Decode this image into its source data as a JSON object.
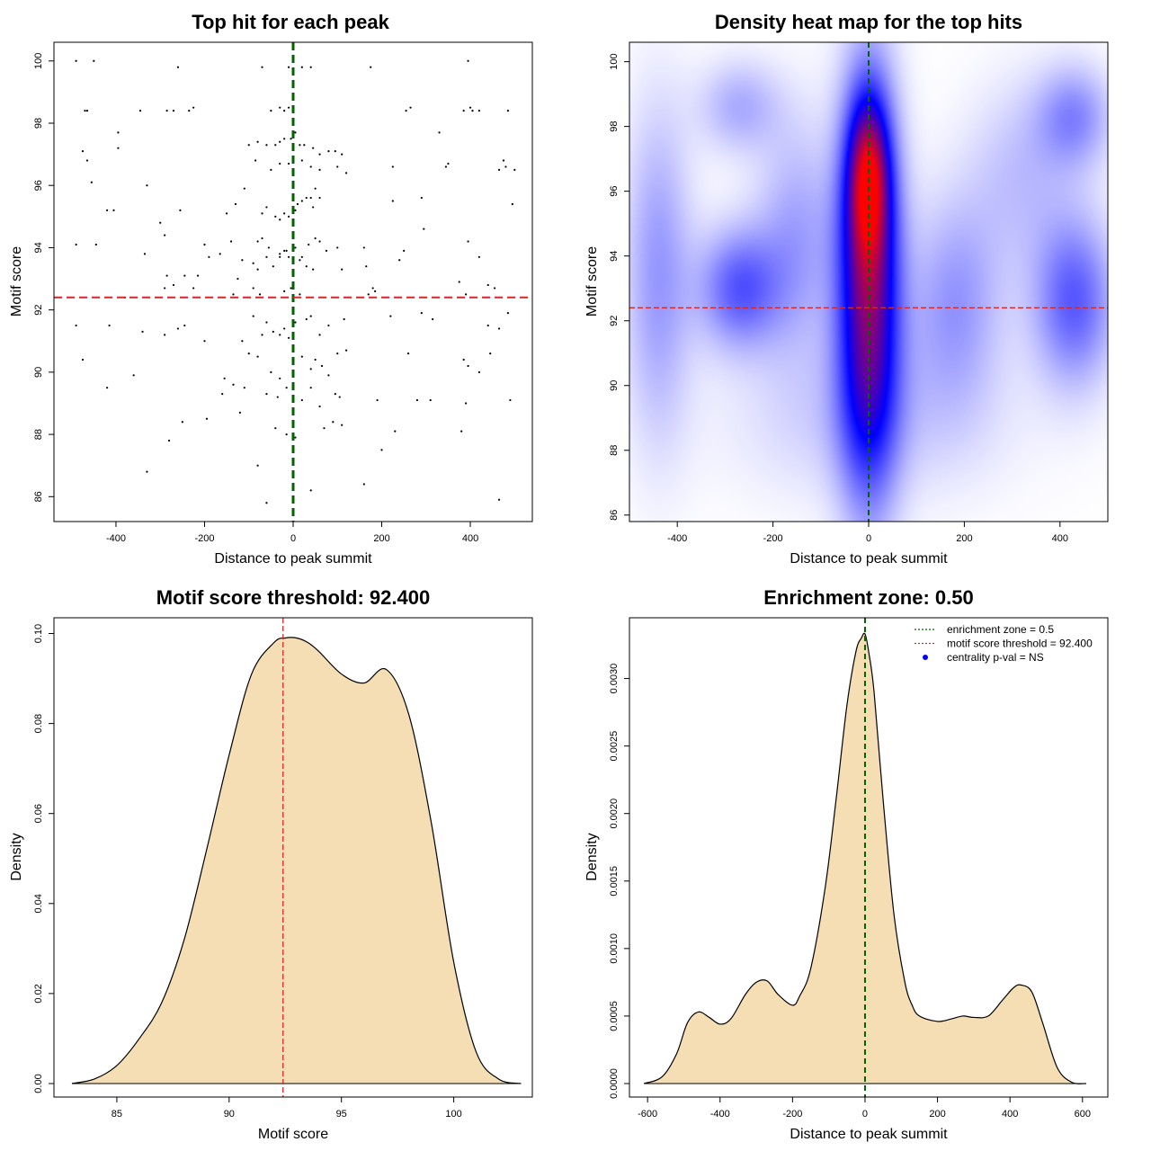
{
  "chart_data": [
    {
      "type": "scatter",
      "title": "Top hit for each peak",
      "xlabel": "Distance to peak summit",
      "ylabel": "Motif score",
      "xlim": [
        -540,
        540
      ],
      "ylim": [
        85.2,
        100.6
      ],
      "xticks": [
        -400,
        -200,
        0,
        200,
        400
      ],
      "yticks": [
        86,
        88,
        90,
        92,
        94,
        96,
        98,
        100
      ],
      "xtick_labels": [
        "-400",
        "-200",
        "0",
        "200",
        "400"
      ],
      "ytick_labels": [
        "86",
        "88",
        "90",
        "92",
        "94",
        "96",
        "98",
        "100"
      ],
      "vline": {
        "x": 0,
        "color": "#006400"
      },
      "hline": {
        "y": 92.4,
        "color": "#d62728"
      },
      "points": [
        [
          -490,
          100
        ],
        [
          -450,
          100
        ],
        [
          -260,
          99.8
        ],
        [
          -70,
          99.8
        ],
        [
          -10,
          99.8
        ],
        [
          20,
          99.8
        ],
        [
          40,
          99.8
        ],
        [
          175,
          99.8
        ],
        [
          395,
          100
        ],
        [
          -470,
          98.4
        ],
        [
          -465,
          98.4
        ],
        [
          -345,
          98.4
        ],
        [
          -285,
          98.4
        ],
        [
          -270,
          98.4
        ],
        [
          -235,
          98.4
        ],
        [
          -225,
          98.5
        ],
        [
          -50,
          98.4
        ],
        [
          -30,
          98.5
        ],
        [
          -20,
          98.4
        ],
        [
          -10,
          98.5
        ],
        [
          255,
          98.4
        ],
        [
          265,
          98.5
        ],
        [
          385,
          98.4
        ],
        [
          400,
          98.5
        ],
        [
          405,
          98.4
        ],
        [
          420,
          98.4
        ],
        [
          485,
          98.4
        ],
        [
          -395,
          97.7
        ],
        [
          -475,
          97.1
        ],
        [
          -395,
          97.2
        ],
        [
          -465,
          96.8
        ],
        [
          -100,
          97.3
        ],
        [
          -80,
          97.4
        ],
        [
          -60,
          97.3
        ],
        [
          -40,
          97.3
        ],
        [
          -30,
          97.4
        ],
        [
          -20,
          97.5
        ],
        [
          -5,
          97.5
        ],
        [
          5,
          97.7
        ],
        [
          15,
          97.3
        ],
        [
          25,
          97.3
        ],
        [
          45,
          97.2
        ],
        [
          60,
          97.0
        ],
        [
          80,
          97.1
        ],
        [
          95,
          97.1
        ],
        [
          110,
          97.0
        ],
        [
          330,
          97.7
        ],
        [
          475,
          96.8
        ],
        [
          -455,
          96.1
        ],
        [
          -330,
          96.0
        ],
        [
          -85,
          96.8
        ],
        [
          -50,
          96.5
        ],
        [
          -30,
          96.7
        ],
        [
          -10,
          96.7
        ],
        [
          20,
          96.8
        ],
        [
          40,
          96.6
        ],
        [
          60,
          96.5
        ],
        [
          100,
          96.6
        ],
        [
          120,
          96.4
        ],
        [
          225,
          96.6
        ],
        [
          345,
          96.6
        ],
        [
          350,
          96.7
        ],
        [
          480,
          96.6
        ],
        [
          500,
          96.5
        ],
        [
          465,
          96.5
        ],
        [
          -420,
          95.2
        ],
        [
          -405,
          95.2
        ],
        [
          -255,
          95.2
        ],
        [
          -150,
          95.1
        ],
        [
          -130,
          95.4
        ],
        [
          -110,
          95.9
        ],
        [
          -70,
          95.1
        ],
        [
          -60,
          95.3
        ],
        [
          -40,
          95.0
        ],
        [
          -30,
          94.9
        ],
        [
          -20,
          95.1
        ],
        [
          -10,
          95.0
        ],
        [
          5,
          95.2
        ],
        [
          10,
          95.4
        ],
        [
          20,
          95.5
        ],
        [
          30,
          95.6
        ],
        [
          40,
          95.6
        ],
        [
          45,
          95.3
        ],
        [
          50,
          95.9
        ],
        [
          60,
          95.6
        ],
        [
          225,
          95.5
        ],
        [
          290,
          95.6
        ],
        [
          495,
          95.4
        ],
        [
          -300,
          94.8
        ],
        [
          -490,
          94.1
        ],
        [
          -445,
          94.1
        ],
        [
          -290,
          94.4
        ],
        [
          -200,
          94.1
        ],
        [
          -140,
          94.2
        ],
        [
          -115,
          93.6
        ],
        [
          -80,
          94.2
        ],
        [
          -70,
          94.3
        ],
        [
          -55,
          94.0
        ],
        [
          -30,
          93.8
        ],
        [
          -15,
          93.9
        ],
        [
          5,
          94.0
        ],
        [
          20,
          93.7
        ],
        [
          35,
          94.1
        ],
        [
          50,
          94.3
        ],
        [
          60,
          94.2
        ],
        [
          75,
          93.9
        ],
        [
          100,
          94.0
        ],
        [
          160,
          94.0
        ],
        [
          250,
          93.9
        ],
        [
          295,
          94.6
        ],
        [
          395,
          94.2
        ],
        [
          -335,
          93.8
        ],
        [
          -285,
          93.1
        ],
        [
          -190,
          93.7
        ],
        [
          -165,
          93.8
        ],
        [
          -125,
          93.0
        ],
        [
          -90,
          93.5
        ],
        [
          -80,
          93.3
        ],
        [
          -60,
          93.7
        ],
        [
          -45,
          93.4
        ],
        [
          -30,
          93.7
        ],
        [
          -20,
          93.9
        ],
        [
          -10,
          93.7
        ],
        [
          15,
          93.6
        ],
        [
          30,
          93.4
        ],
        [
          45,
          93.3
        ],
        [
          110,
          93.3
        ],
        [
          165,
          93.4
        ],
        [
          240,
          93.6
        ],
        [
          420,
          93.7
        ],
        [
          375,
          92.9
        ],
        [
          -380,
          92.4
        ],
        [
          -290,
          92.7
        ],
        [
          -270,
          92.8
        ],
        [
          -245,
          93.1
        ],
        [
          -225,
          92.7
        ],
        [
          -215,
          93.1
        ],
        [
          -135,
          92.5
        ],
        [
          -90,
          92.7
        ],
        [
          -75,
          92.5
        ],
        [
          -20,
          92.6
        ],
        [
          -5,
          92.7
        ],
        [
          15,
          92.5
        ],
        [
          170,
          92.5
        ],
        [
          180,
          92.7
        ],
        [
          185,
          92.6
        ],
        [
          390,
          92.5
        ],
        [
          440,
          92.8
        ],
        [
          455,
          92.7
        ],
        [
          -490,
          91.5
        ],
        [
          -415,
          91.5
        ],
        [
          -340,
          91.3
        ],
        [
          -260,
          91.4
        ],
        [
          -245,
          91.5
        ],
        [
          -200,
          91.0
        ],
        [
          -115,
          91.0
        ],
        [
          -90,
          91.8
        ],
        [
          -70,
          91.2
        ],
        [
          -60,
          91.6
        ],
        [
          -45,
          91.3
        ],
        [
          -30,
          91.2
        ],
        [
          -20,
          91.4
        ],
        [
          -10,
          91.1
        ],
        [
          5,
          91.6
        ],
        [
          30,
          91.7
        ],
        [
          40,
          91.8
        ],
        [
          60,
          91.2
        ],
        [
          80,
          91.5
        ],
        [
          115,
          91.7
        ],
        [
          220,
          91.8
        ],
        [
          290,
          91.9
        ],
        [
          315,
          91.7
        ],
        [
          440,
          91.5
        ],
        [
          465,
          91.4
        ],
        [
          485,
          91.9
        ],
        [
          -475,
          90.4
        ],
        [
          -290,
          91.2
        ],
        [
          -100,
          90.6
        ],
        [
          -80,
          90.5
        ],
        [
          -50,
          90.0
        ],
        [
          -30,
          89.8
        ],
        [
          20,
          90.5
        ],
        [
          40,
          90.1
        ],
        [
          50,
          90.4
        ],
        [
          65,
          90.2
        ],
        [
          80,
          89.9
        ],
        [
          100,
          90.6
        ],
        [
          120,
          90.7
        ],
        [
          260,
          90.6
        ],
        [
          385,
          90.4
        ],
        [
          395,
          90.2
        ],
        [
          420,
          90.0
        ],
        [
          445,
          90.6
        ],
        [
          -420,
          89.5
        ],
        [
          -360,
          89.9
        ],
        [
          -155,
          89.8
        ],
        [
          -160,
          89.3
        ],
        [
          -135,
          89.6
        ],
        [
          -110,
          89.5
        ],
        [
          -60,
          89.3
        ],
        [
          -35,
          89.2
        ],
        [
          -15,
          89.5
        ],
        [
          20,
          89.1
        ],
        [
          40,
          89.5
        ],
        [
          60,
          88.9
        ],
        [
          95,
          89.3
        ],
        [
          105,
          89.2
        ],
        [
          190,
          89.1
        ],
        [
          280,
          89.1
        ],
        [
          310,
          89.1
        ],
        [
          390,
          89.0
        ],
        [
          490,
          89.1
        ],
        [
          -250,
          88.4
        ],
        [
          -195,
          88.5
        ],
        [
          -120,
          88.7
        ],
        [
          -40,
          88.2
        ],
        [
          -15,
          88.0
        ],
        [
          5,
          87.9
        ],
        [
          70,
          88.2
        ],
        [
          90,
          88.4
        ],
        [
          110,
          88.3
        ],
        [
          230,
          88.1
        ],
        [
          380,
          88.1
        ],
        [
          -280,
          87.8
        ],
        [
          -80,
          87.0
        ],
        [
          200,
          87.5
        ],
        [
          -330,
          86.8
        ],
        [
          40,
          86.2
        ],
        [
          160,
          86.4
        ],
        [
          -60,
          85.8
        ],
        [
          465,
          85.9
        ]
      ]
    },
    {
      "type": "heatmap",
      "title": "Density heat map for the top hits",
      "xlabel": "Distance to peak summit",
      "ylabel": "Motif score",
      "xlim": [
        -500,
        500
      ],
      "ylim": [
        85.8,
        100.6
      ],
      "xticks": [
        -400,
        -200,
        0,
        200,
        400
      ],
      "yticks": [
        86,
        88,
        90,
        92,
        94,
        96,
        98,
        100
      ],
      "xtick_labels": [
        "-400",
        "-200",
        "0",
        "200",
        "400"
      ],
      "ytick_labels": [
        "86",
        "88",
        "90",
        "92",
        "94",
        "96",
        "98",
        "100"
      ],
      "colors": [
        "#ffffff",
        "#0000ff",
        "#ff0000"
      ],
      "vline": {
        "x": 0,
        "color": "#006400"
      },
      "hline": {
        "y": 92.4,
        "color": "#d62728"
      },
      "density_blobs": [
        {
          "x": 0,
          "y": 93,
          "sx": 45,
          "sy": 4.2,
          "w": 0.75
        },
        {
          "x": 0,
          "y": 96.5,
          "sx": 30,
          "sy": 1.7,
          "w": 0.55
        },
        {
          "x": -270,
          "y": 93.0,
          "sx": 60,
          "sy": 1.3,
          "w": 0.32
        },
        {
          "x": 430,
          "y": 92.6,
          "sx": 60,
          "sy": 1.8,
          "w": 0.32
        },
        {
          "x": 430,
          "y": 98.3,
          "sx": 55,
          "sy": 1.1,
          "w": 0.22
        },
        {
          "x": -270,
          "y": 98.6,
          "sx": 60,
          "sy": 1.0,
          "w": 0.16
        },
        {
          "x": -440,
          "y": 93.5,
          "sx": 50,
          "sy": 3.5,
          "w": 0.2
        },
        {
          "x": 180,
          "y": 92.6,
          "sx": 70,
          "sy": 2.2,
          "w": 0.2
        },
        {
          "x": -150,
          "y": 94.5,
          "sx": 60,
          "sy": 2.5,
          "w": 0.18
        },
        {
          "x": 0,
          "y": 89,
          "sx": 200,
          "sy": 1.8,
          "w": 0.1
        },
        {
          "x": 320,
          "y": 96.5,
          "sx": 80,
          "sy": 2.0,
          "w": 0.12
        }
      ]
    },
    {
      "type": "area",
      "title": "Motif score threshold: 92.400",
      "xlabel": "Motif score",
      "ylabel": "Density",
      "xlim": [
        82.2,
        103.5
      ],
      "ylim": [
        -0.003,
        0.1035
      ],
      "xticks": [
        85,
        90,
        95,
        100
      ],
      "yticks": [
        0.0,
        0.02,
        0.04,
        0.06,
        0.08,
        0.1
      ],
      "xtick_labels": [
        "85",
        "90",
        "95",
        "100"
      ],
      "ytick_labels": [
        "0.00",
        "0.02",
        "0.04",
        "0.06",
        "0.08",
        "0.10"
      ],
      "fill": "#f5deb3",
      "vline": {
        "x": 92.4,
        "color": "#d62728"
      },
      "x": [
        83,
        84,
        85,
        86,
        87,
        88,
        89,
        90,
        91,
        92,
        92.5,
        93,
        93.5,
        94,
        95,
        96,
        97,
        98,
        99,
        100,
        101,
        102,
        103
      ],
      "y": [
        0.0,
        0.001,
        0.004,
        0.01,
        0.018,
        0.032,
        0.052,
        0.073,
        0.091,
        0.098,
        0.099,
        0.099,
        0.098,
        0.096,
        0.091,
        0.089,
        0.092,
        0.082,
        0.058,
        0.027,
        0.007,
        0.001,
        0.0
      ]
    },
    {
      "type": "area",
      "title": "Enrichment zone: 0.50",
      "xlabel": "Distance to peak summit",
      "ylabel": "Density",
      "xlim": [
        -650,
        670
      ],
      "ylim": [
        -0.0001,
        0.00345
      ],
      "xticks": [
        -600,
        -400,
        -200,
        0,
        200,
        400,
        600
      ],
      "yticks": [
        0.0,
        0.0005,
        0.001,
        0.0015,
        0.002,
        0.0025,
        0.003
      ],
      "xtick_labels": [
        "-600",
        "-400",
        "-200",
        "0",
        "200",
        "400",
        "600"
      ],
      "ytick_labels": [
        "0.0000",
        "0.0005",
        "0.0010",
        "0.0015",
        "0.0020",
        "0.0025",
        "0.0030"
      ],
      "fill": "#f5deb3",
      "vline": {
        "x": 0,
        "color": "#006400"
      },
      "legend": [
        {
          "label": "enrichment zone = 0.5",
          "color": "#006400",
          "symbol": "dotted-line"
        },
        {
          "label": "motif score threshold = 92.400",
          "color": "#d62728",
          "symbol": "dotted-line"
        },
        {
          "label": "centrality p-val = NS",
          "color": "#0000ff",
          "symbol": "dot"
        }
      ],
      "legend_position": "top-right",
      "x": [
        -610,
        -560,
        -520,
        -490,
        -460,
        -430,
        -400,
        -370,
        -330,
        -300,
        -270,
        -240,
        -200,
        -180,
        -150,
        -110,
        -80,
        -50,
        -25,
        -10,
        0,
        10,
        25,
        50,
        80,
        110,
        130,
        150,
        200,
        240,
        270,
        300,
        340,
        380,
        410,
        430,
        460,
        490,
        530,
        570,
        610
      ],
      "y": [
        0.0,
        5e-05,
        0.00022,
        0.00045,
        0.00053,
        0.00049,
        0.00044,
        0.00048,
        0.00066,
        0.00075,
        0.00076,
        0.00066,
        0.00058,
        0.00065,
        0.00085,
        0.00145,
        0.0021,
        0.0028,
        0.0032,
        0.0033,
        0.00333,
        0.0032,
        0.0029,
        0.0021,
        0.00125,
        0.00075,
        0.00058,
        0.0005,
        0.00046,
        0.00048,
        0.0005,
        0.00049,
        0.0005,
        0.00062,
        0.00071,
        0.00073,
        0.00068,
        0.00045,
        0.00012,
        1e-05,
        0.0
      ]
    }
  ]
}
